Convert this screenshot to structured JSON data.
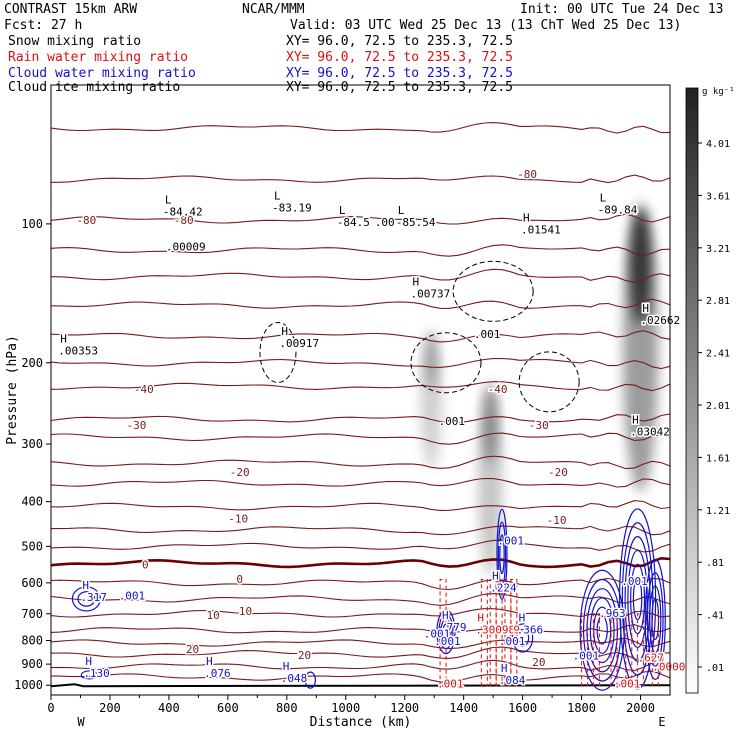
{
  "header": {
    "left_title": "CONTRAST 15km ARW",
    "forecast": "Fcst:    27 h",
    "center_title": "NCAR/MMM",
    "init": "Init: 00 UTC Tue 24 Dec 13",
    "valid": "Valid: 03 UTC Wed 25 Dec 13 (13 ChT Wed 25 Dec 13)"
  },
  "legend": [
    {
      "name": "Snow mixing ratio",
      "xy": "XY=  96.0, 72.5 to 235.3, 72.5",
      "color": "#000000"
    },
    {
      "name": "Rain water mixing ratio",
      "xy": "XY=  96.0, 72.5 to 235.3, 72.5",
      "color": "#dd1111"
    },
    {
      "name": "Cloud water mixing ratio",
      "xy": "XY=  96.0, 72.5 to 235.3, 72.5",
      "color": "#1111cc"
    },
    {
      "name": "Cloud ice mixing ratio",
      "xy": "XY=  96.0, 72.5 to 235.3, 72.5",
      "color": "#000000"
    }
  ],
  "colorbar": {
    "unit_label": "g kg⁻¹",
    "ticks": [
      "4.01",
      "3.61",
      "3.21",
      "2.81",
      "2.41",
      "2.01",
      "1.61",
      "1.21",
      ".81",
      ".41",
      ".01"
    ]
  },
  "colors": {
    "temperature": "#7a1a1a",
    "zero_isotherm": "#6a0000",
    "rain": "#dd1111",
    "cloud_water": "#1111cc",
    "cloud_ice": "#000000",
    "terrain": "#000000"
  },
  "chart_data": {
    "type": "contour",
    "xlabel": "Distance (km)",
    "ylabel": "Pressure (hPa)",
    "xlim": [
      0,
      2100
    ],
    "ylim": [
      1050,
      50
    ],
    "y_scale": "log",
    "x_ticks": [
      "0",
      "200",
      "400",
      "600",
      "800",
      "1000",
      "1200",
      "1400",
      "1600",
      "1800",
      "2000"
    ],
    "y_ticks": [
      "100",
      "200",
      "300",
      "400",
      "500",
      "600",
      "700",
      "800",
      "900",
      "1000"
    ],
    "x_end_labels": {
      "left": "W",
      "right": "E"
    },
    "temperature_contours": [
      {
        "p": 62,
        "label": "-80"
      },
      {
        "p": 80,
        "label": ""
      },
      {
        "p": 98,
        "label": "-80"
      },
      {
        "p": 114,
        "label": ""
      },
      {
        "p": 130,
        "label": ""
      },
      {
        "p": 150,
        "label": ""
      },
      {
        "p": 175,
        "label": ""
      },
      {
        "p": 200,
        "label": "-50"
      },
      {
        "p": 225,
        "label": "-40"
      },
      {
        "p": 265,
        "label": ""
      },
      {
        "p": 290,
        "label": "-30"
      },
      {
        "p": 330,
        "label": "-20"
      },
      {
        "p": 365,
        "label": ""
      },
      {
        "p": 410,
        "label": "-10"
      },
      {
        "p": 460,
        "label": ""
      },
      {
        "p": 500,
        "label": ""
      },
      {
        "p": 545,
        "label": "0"
      },
      {
        "p": 600,
        "label": ""
      },
      {
        "p": 650,
        "label": ""
      },
      {
        "p": 700,
        "label": "10"
      },
      {
        "p": 760,
        "label": ""
      },
      {
        "p": 810,
        "label": ""
      },
      {
        "p": 855,
        "label": "20"
      },
      {
        "p": 910,
        "label": ""
      },
      {
        "p": 960,
        "label": ""
      }
    ],
    "temperature_labels": [
      {
        "x": 120,
        "p": 98,
        "text": "-80"
      },
      {
        "x": 450,
        "p": 98,
        "text": "-80"
      },
      {
        "x": 1615,
        "p": 78,
        "text": "-80"
      },
      {
        "x": 315,
        "p": 228,
        "text": "-40"
      },
      {
        "x": 1515,
        "p": 228,
        "text": "-40"
      },
      {
        "x": 290,
        "p": 273,
        "text": "-30"
      },
      {
        "x": 1655,
        "p": 273,
        "text": "-30"
      },
      {
        "x": 640,
        "p": 345,
        "text": "-20"
      },
      {
        "x": 1720,
        "p": 345,
        "text": "-20"
      },
      {
        "x": 635,
        "p": 435,
        "text": "-10"
      },
      {
        "x": 1715,
        "p": 438,
        "text": "-10"
      },
      {
        "x": 320,
        "p": 548,
        "text": "0"
      },
      {
        "x": 640,
        "p": 588,
        "text": "0"
      },
      {
        "x": 550,
        "p": 704,
        "text": "10"
      },
      {
        "x": 660,
        "p": 690,
        "text": "10"
      },
      {
        "x": 480,
        "p": 835,
        "text": "20"
      },
      {
        "x": 860,
        "p": 860,
        "text": "20"
      },
      {
        "x": 1655,
        "p": 890,
        "text": "20"
      }
    ],
    "extrema_labels": [
      {
        "x": 400,
        "p": 95,
        "marker": "L",
        "value": "-84.42",
        "color": "#000000"
      },
      {
        "x": 410,
        "p": 113,
        "marker": "",
        "value": ".00009",
        "color": "#000000"
      },
      {
        "x": 770,
        "p": 93,
        "marker": "L",
        "value": "-83.19",
        "color": "#000000"
      },
      {
        "x": 990,
        "p": 100,
        "marker": "L",
        "value": "-84.5",
        "value2": ".00",
        "color": "#000000"
      },
      {
        "x": 1190,
        "p": 100,
        "marker": "L",
        "value": "-85.54",
        "color": "#000000"
      },
      {
        "x": 1240,
        "p": 143,
        "marker": "H",
        "value": ".00737",
        "color": "#000000"
      },
      {
        "x": 1615,
        "p": 104,
        "marker": "H",
        "value": ".01541",
        "color": "#000000"
      },
      {
        "x": 1875,
        "p": 94,
        "marker": "L",
        "value": "-89.84",
        "color": "#000000"
      },
      {
        "x": 2020,
        "p": 163,
        "marker": "H",
        "value": ".02662",
        "color": "#000000"
      },
      {
        "x": 45,
        "p": 190,
        "marker": "H",
        "value": ".00353",
        "color": "#000000"
      },
      {
        "x": 795,
        "p": 183,
        "marker": "H",
        "value": ".00917",
        "color": "#000000"
      },
      {
        "x": 1335,
        "p": 270,
        "marker": "",
        "value": ".001",
        "color": "#000000"
      },
      {
        "x": 1455,
        "p": 175,
        "marker": "",
        "value": ".001",
        "color": "#000000"
      },
      {
        "x": 1985,
        "p": 285,
        "marker": "H",
        "value": ".03042",
        "color": "#000000"
      },
      {
        "x": 1535,
        "p": 490,
        "marker": "",
        "value": ".001",
        "color": "#1111cc"
      },
      {
        "x": 1510,
        "p": 620,
        "marker": "H",
        "value": ".224",
        "color": "#1111cc"
      },
      {
        "x": 120,
        "p": 650,
        "marker": "H",
        "value": ".317",
        "color": "#1111cc"
      },
      {
        "x": 250,
        "p": 645,
        "marker": "",
        "value": ".001",
        "color": "#1111cc"
      },
      {
        "x": 1340,
        "p": 755,
        "marker": "H",
        "value": ".779",
        "color": "#1111cc"
      },
      {
        "x": 1285,
        "p": 780,
        "marker": "",
        "value": ".001",
        "color": "#1111cc"
      },
      {
        "x": 1320,
        "p": 810,
        "marker": "",
        "value": ".001",
        "color": "#1111cc"
      },
      {
        "x": 1460,
        "p": 765,
        "marker": "H",
        "value": ".30098",
        "value2": "9",
        "color": "#dd1111"
      },
      {
        "x": 1600,
        "p": 765,
        "marker": "H",
        "value": ".366",
        "color": "#1111cc"
      },
      {
        "x": 1540,
        "p": 810,
        "marker": "",
        "value": ".001",
        "color": "#1111cc"
      },
      {
        "x": 1880,
        "p": 705,
        "marker": "",
        "value": ".963",
        "color": "#1111cc"
      },
      {
        "x": 1955,
        "p": 600,
        "marker": "",
        "value": ".001",
        "color": "#1111cc"
      },
      {
        "x": 1790,
        "p": 870,
        "marker": "",
        "value": ".001",
        "color": "#1111cc"
      },
      {
        "x": 2010,
        "p": 880,
        "marker": "",
        "value": ".627",
        "color": "#dd1111"
      },
      {
        "x": 2060,
        "p": 920,
        "marker": "",
        "value": ".0000",
        "color": "#dd1111"
      },
      {
        "x": 130,
        "p": 950,
        "marker": "H",
        "value": ".130",
        "color": "#1111cc"
      },
      {
        "x": 540,
        "p": 950,
        "marker": "H",
        "value": ".076",
        "color": "#1111cc"
      },
      {
        "x": 800,
        "p": 975,
        "marker": "H",
        "value": ".048",
        "color": "#1111cc"
      },
      {
        "x": 1540,
        "p": 985,
        "marker": "H",
        "value": ".084",
        "color": "#1111cc"
      },
      {
        "x": 1330,
        "p": 1002,
        "marker": "",
        "value": ".001",
        "color": "#dd1111"
      },
      {
        "x": 1930,
        "p": 1002,
        "marker": "",
        "value": ".001",
        "color": "#dd1111"
      }
    ],
    "snow_shading": [
      {
        "x": 2000,
        "p_top": 90,
        "p_bottom": 380,
        "max": 4.0
      },
      {
        "x": 1490,
        "p_top": 220,
        "p_bottom": 580,
        "max": 1.2
      },
      {
        "x": 1290,
        "p_top": 170,
        "p_bottom": 340,
        "max": 0.5
      }
    ],
    "terrain_p": 1005
  }
}
